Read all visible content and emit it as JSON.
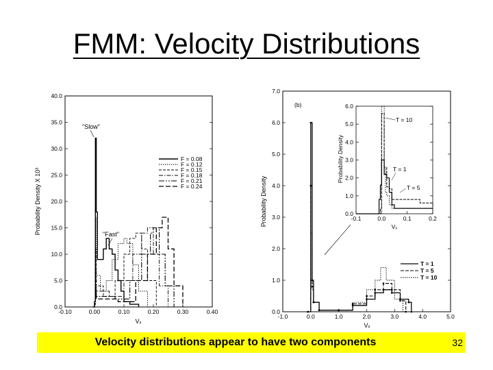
{
  "slide": {
    "title": "FMM: Velocity Distributions",
    "caption": "Velocity distributions appear to have two components",
    "page_number": "32"
  },
  "chart_data": [
    {
      "type": "line",
      "ylabel": "Probability Density X 10³",
      "xlabel": "Vₓ",
      "xlim": [
        -0.1,
        0.4
      ],
      "ylim": [
        0,
        40
      ],
      "x_ticks": [
        "-0.10",
        "0.00",
        "0.10",
        "0.20",
        "0.30",
        "0.40"
      ],
      "y_ticks": [
        "0.0",
        "5.0",
        "10.0",
        "15.0",
        "20.0",
        "25.0",
        "30.0",
        "35.0",
        "40.0"
      ],
      "annotations": [
        "\"Slow\"",
        "\"Fast\""
      ],
      "series": [
        {
          "name": "F = 0.08",
          "x": [
            -0.005,
            0.0,
            0.003,
            0.006,
            0.01,
            0.02,
            0.03,
            0.04,
            0.05,
            0.06,
            0.07,
            0.08,
            0.09,
            0.1,
            0.12,
            0.15
          ],
          "y": [
            0,
            1,
            32,
            18,
            9,
            9,
            11,
            13,
            11,
            10,
            7,
            5,
            3,
            1,
            0.5,
            0
          ]
        },
        {
          "name": "F = 0.12",
          "x": [
            0.0,
            0.003,
            0.006,
            0.02,
            0.04,
            0.06,
            0.08,
            0.1,
            0.11,
            0.13,
            0.15,
            0.18
          ],
          "y": [
            1,
            17,
            6,
            3,
            5,
            9,
            12,
            13,
            12,
            8,
            3,
            0
          ]
        },
        {
          "name": "F = 0.15",
          "x": [
            0.0,
            0.003,
            0.006,
            0.03,
            0.07,
            0.1,
            0.12,
            0.14,
            0.16,
            0.18,
            0.21
          ],
          "y": [
            1,
            11,
            4,
            2,
            5,
            10,
            13,
            14,
            11,
            5,
            0
          ]
        },
        {
          "name": "F = 0.18",
          "x": [
            0.0,
            0.003,
            0.006,
            0.05,
            0.1,
            0.13,
            0.16,
            0.18,
            0.2,
            0.22,
            0.25
          ],
          "y": [
            1,
            7,
            3,
            2,
            5,
            10,
            14,
            15,
            10,
            4,
            0
          ]
        },
        {
          "name": "F = 0.21",
          "x": [
            0.0,
            0.003,
            0.006,
            0.07,
            0.12,
            0.16,
            0.19,
            0.2,
            0.22,
            0.24,
            0.27
          ],
          "y": [
            1,
            5,
            2,
            1.5,
            5,
            10,
            14,
            15,
            10,
            4,
            0
          ]
        },
        {
          "name": "F = 0.24",
          "x": [
            0.0,
            0.003,
            0.006,
            0.08,
            0.14,
            0.18,
            0.21,
            0.23,
            0.25,
            0.27,
            0.3
          ],
          "y": [
            0.5,
            3,
            1.5,
            1,
            5,
            10,
            15,
            17,
            11,
            4,
            0
          ]
        }
      ],
      "legend": "right"
    },
    {
      "type": "line",
      "ylabel": "Probability Density",
      "xlabel": "Vₓ",
      "xlim": [
        -1.0,
        5.0
      ],
      "ylim": [
        0,
        7
      ],
      "x_ticks": [
        "-1.0",
        "0.0",
        "1.0",
        "2.0",
        "3.0",
        "4.0",
        "5.0"
      ],
      "y_ticks": [
        "0.0",
        "1.0",
        "2.0",
        "3.0",
        "4.0",
        "5.0",
        "6.0",
        "7.0"
      ],
      "series": [
        {
          "name": "T = 1",
          "x": [
            -0.1,
            0.0,
            0.05,
            0.1,
            0.3,
            1.0,
            1.5,
            2.0,
            2.3,
            2.6,
            2.9,
            3.2,
            3.5,
            3.6
          ],
          "y": [
            0,
            6.0,
            1.0,
            0.3,
            0.05,
            0.05,
            0.2,
            0.4,
            0.6,
            0.7,
            0.6,
            0.4,
            0.3,
            0
          ]
        },
        {
          "name": "T = 5",
          "x": [
            -0.1,
            0.0,
            0.05,
            0.1,
            0.3,
            1.0,
            1.5,
            2.0,
            2.3,
            2.6,
            2.9,
            3.2,
            3.4
          ],
          "y": [
            0,
            4.0,
            0.8,
            0.3,
            0.05,
            0.05,
            0.25,
            0.5,
            0.7,
            0.9,
            0.7,
            0.35,
            0
          ]
        },
        {
          "name": "T = 10",
          "x": [
            -0.1,
            0.0,
            0.05,
            0.1,
            0.3,
            1.0,
            1.5,
            2.0,
            2.3,
            2.5,
            2.7,
            3.0,
            3.3
          ],
          "y": [
            0,
            2.5,
            0.7,
            0.3,
            0.05,
            0.05,
            0.3,
            0.7,
            1.0,
            1.4,
            1.0,
            0.4,
            0
          ]
        }
      ],
      "legend": "bottom-right",
      "inset": {
        "label": "(b)",
        "ylabel": "Probability Density",
        "xlabel": "Vₓ",
        "xlim": [
          -0.1,
          0.2
        ],
        "ylim": [
          0,
          6
        ],
        "x_ticks": [
          "-0.1",
          "0.0",
          "0.1",
          "0.2"
        ],
        "y_ticks": [
          "0.0",
          "1.0",
          "2.0",
          "3.0",
          "4.0",
          "5.0",
          "6.0"
        ],
        "annotations": [
          "T = 10",
          "T = 1",
          "T = 5"
        ],
        "series": [
          {
            "name": "T = 1",
            "x": [
              -0.1,
              -0.01,
              -0.005,
              0.0,
              0.01,
              0.02,
              0.03,
              0.04,
              0.05,
              0.2
            ],
            "y": [
              0,
              0.8,
              1.6,
              3.0,
              2.2,
              2.0,
              1.2,
              0.5,
              0.3,
              0.3
            ]
          },
          {
            "name": "T = 5",
            "x": [
              -0.1,
              -0.005,
              0.0,
              0.01,
              0.02,
              0.03,
              0.04,
              0.05,
              0.15,
              0.2
            ],
            "y": [
              0,
              0.3,
              5.6,
              2.6,
              1.5,
              1.4,
              0.8,
              0.8,
              0.6,
              0.3
            ]
          },
          {
            "name": "T = 10",
            "x": [
              -0.1,
              -0.005,
              0.0,
              0.01,
              0.015,
              0.02,
              0.03,
              0.04,
              0.2
            ],
            "y": [
              0,
              0.2,
              6.0,
              2.5,
              1.2,
              1.0,
              0.5,
              0.3,
              0.2
            ]
          }
        ]
      }
    }
  ]
}
